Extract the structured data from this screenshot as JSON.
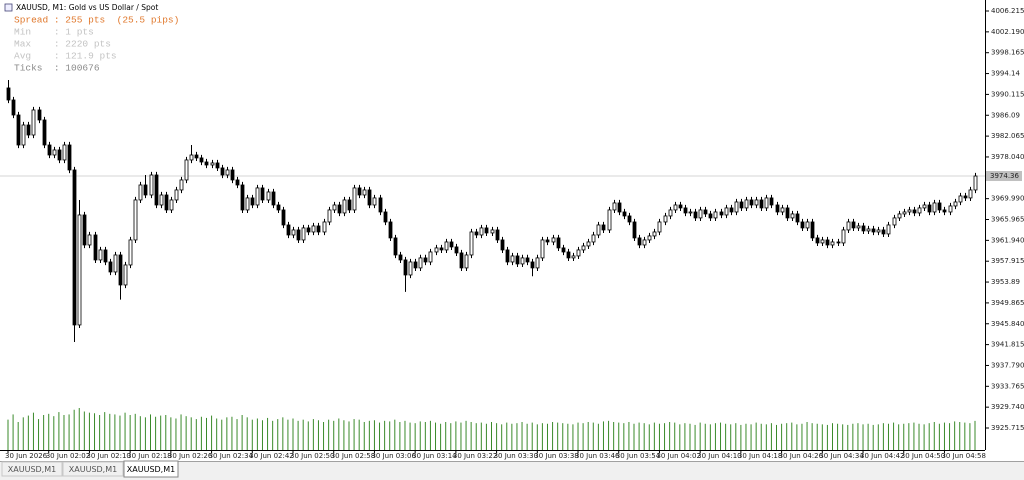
{
  "window": {
    "title": "XAUUSD, M1:  Gold vs US Dollar / Spot",
    "spread": "Spread : 255 pts  (25.5 pips)",
    "info": [
      "Min    : 1 pts",
      "Max    : 2220 pts",
      "Avg    : 121.9 pts"
    ],
    "ticks": "Ticks  : 100676",
    "tabs": [
      "XAUUSD,M1",
      "XAUUSD,M1",
      "XAUUSD,M1"
    ]
  },
  "chart_data": {
    "type": "candlestick",
    "ylim": [
      3921.47,
      4008.34
    ],
    "yticks": [
      4006.215,
      {
        "value": 4002.19,
        "label": "4002.190"
      },
      3998.165,
      3994.14,
      3990.115,
      3986.09,
      3982.065,
      {
        "value": 3978.04,
        "label": "3978.040"
      },
      {
        "value": 3969.99,
        "label": "3969.990"
      },
      3965.965,
      {
        "value": 3961.94,
        "label": "3961.940"
      },
      3957.915,
      3953.89,
      3949.865,
      {
        "value": 3945.84,
        "label": "3945.840"
      },
      3941.815,
      {
        "value": 3937.79,
        "label": "3937.790"
      },
      3933.765,
      {
        "value": 3929.74,
        "label": "3929.740"
      },
      3925.715
    ],
    "current_price": 3974.36,
    "up_color": "#ffffff",
    "down_color": "#000000",
    "volume_color": "#3a8a2a",
    "categories": [
      "30 Jun 2026",
      null,
      null,
      null,
      null,
      null,
      null,
      null,
      "30 Jun 02:02",
      null,
      null,
      null,
      null,
      null,
      null,
      null,
      "30 Jun 02:10",
      null,
      null,
      null,
      null,
      null,
      null,
      null,
      "30 Jun 02:18",
      null,
      null,
      null,
      null,
      null,
      null,
      null,
      "30 Jun 02:26",
      null,
      null,
      null,
      null,
      null,
      null,
      null,
      "30 Jun 02:34",
      null,
      null,
      null,
      null,
      null,
      null,
      null,
      "30 Jun 02:42",
      null,
      null,
      null,
      null,
      null,
      null,
      null,
      "30 Jun 02:50",
      null,
      null,
      null,
      null,
      null,
      null,
      null,
      "30 Jun 02:58",
      null,
      null,
      null,
      null,
      null,
      null,
      null,
      "30 Jun 03:06",
      null,
      null,
      null,
      null,
      null,
      null,
      null,
      "30 Jun 03:14",
      null,
      null,
      null,
      null,
      null,
      null,
      null,
      "30 Jun 03:22",
      null,
      null,
      null,
      null,
      null,
      null,
      null,
      "30 Jun 03:30",
      null,
      null,
      null,
      null,
      null,
      null,
      null,
      "30 Jun 03:38",
      null,
      null,
      null,
      null,
      null,
      null,
      null,
      "30 Jun 03:46",
      null,
      null,
      null,
      null,
      null,
      null,
      null,
      "30 Jun 03:54",
      null,
      null,
      null,
      null,
      null,
      null,
      null,
      "30 Jun 04:02",
      null,
      null,
      null,
      null,
      null,
      null,
      null,
      "30 Jun 04:10",
      null,
      null,
      null,
      null,
      null,
      null,
      null,
      "30 Jun 04:18",
      null,
      null,
      null,
      null,
      null,
      null,
      null,
      "30 Jun 04:26",
      null,
      null,
      null,
      null,
      null,
      null,
      null,
      "30 Jun 04:34",
      null,
      null,
      null,
      null,
      null,
      null,
      null,
      "30 Jun 04:42",
      null,
      null,
      null,
      null,
      null,
      null,
      null,
      "30 Jun 04:50",
      null,
      null,
      null,
      null,
      null,
      null,
      null,
      "30 Jun 04:58",
      null,
      null,
      null,
      null,
      null,
      null
    ],
    "open": [
      3991.36,
      3989.04,
      3986.14,
      3980.35,
      3984.21,
      3982.28,
      3987.11,
      3985.18,
      3980.35,
      3978.42,
      3979.39,
      3977.46,
      3980.35,
      3975.53,
      3945.61,
      3966.84,
      3961.05,
      3962.98,
      3958.16,
      3960.09,
      3957.77,
      3955.84,
      3959.12,
      3953.33,
      3957.19,
      3962.02,
      3969.74,
      3972.63,
      3970.7,
      3974.56,
      3968.77,
      3970.7,
      3967.81,
      3969.74,
      3971.67,
      3973.6,
      3977.46,
      3978.42,
      3977.85,
      3977.07,
      3976.49,
      3976.88,
      3975.92,
      3974.56,
      3975.53,
      3973.6,
      3972.63,
      3967.81,
      3970.13,
      3968.77,
      3972.06,
      3969.74,
      3971.28,
      3968.77,
      3967.81,
      3964.91,
      3962.98,
      3963.95,
      3962.02,
      3964.34,
      3963.56,
      3964.72,
      3963.56,
      3965.49,
      3967.81,
      3968.77,
      3967.23,
      3969.74,
      3967.81,
      3972.06,
      3970.7,
      3971.67,
      3968.77,
      3970.13,
      3967.42,
      3965.49,
      3962.41,
      3959.12,
      3958.16,
      3955.26,
      3957.77,
      3956.62,
      3958.55,
      3957.77,
      3959.7,
      3960.48,
      3960.09,
      3961.63,
      3960.67,
      3959.51,
      3956.62,
      3959.12,
      3963.56,
      3962.98,
      3964.34,
      3963.37,
      3963.95,
      3962.02,
      3960.09,
      3957.77,
      3958.93,
      3957.39,
      3958.55,
      3957.77,
      3956.62,
      3958.55,
      3962.02,
      3961.63,
      3962.41,
      3960.48,
      3959.7,
      3958.55,
      3958.93,
      3960.09,
      3960.86,
      3961.63,
      3962.98,
      3964.91,
      3963.95,
      3967.81,
      3969.16,
      3967.42,
      3966.65,
      3965.49,
      3962.41,
      3961.05,
      3962.02,
      3962.79,
      3963.56,
      3965.49,
      3966.65,
      3967.81,
      3968.77,
      3968.2,
      3967.23,
      3967.42,
      3966.27,
      3967.81,
      3967.04,
      3966.27,
      3967.42,
      3966.84,
      3968.2,
      3967.42,
      3969.35,
      3968.2,
      3969.74,
      3968.77,
      3969.74,
      3968.2,
      3970.13,
      3968.77,
      3967.42,
      3968.2,
      3966.27,
      3967.04,
      3965.49,
      3964.34,
      3965.49,
      3962.41,
      3961.44,
      3962.02,
      3961.05,
      3961.63,
      3961.44,
      3963.95,
      3965.49,
      3964.34,
      3964.72,
      3963.76,
      3964.14,
      3963.56,
      3963.95,
      3963.18,
      3964.91,
      3966.27,
      3967.04,
      3967.42,
      3967.81,
      3967.23,
      3968.2,
      3968.77,
      3967.42,
      3969.16,
      3967.81,
      3967.42,
      3968.58,
      3969.35,
      3970.51,
      3970.13,
      3971.67
    ],
    "high": [
      3992.9,
      3989.64,
      3986.74,
      3984.81,
      3984.81,
      3987.71,
      3987.71,
      3985.78,
      3980.95,
      3979.99,
      3979.99,
      3980.95,
      3980.95,
      3976.13,
      3969.74,
      3967.44,
      3963.58,
      3963.58,
      3960.69,
      3960.69,
      3958.37,
      3959.72,
      3959.72,
      3957.79,
      3962.62,
      3970.34,
      3973.23,
      3974.56,
      3975.16,
      3975.16,
      3971.3,
      3971.3,
      3970.34,
      3972.27,
      3974.2,
      3978.06,
      3980.35,
      3979.02,
      3978.45,
      3977.67,
      3977.48,
      3977.48,
      3976.52,
      3976.13,
      3976.13,
      3974.2,
      3973.23,
      3970.73,
      3970.73,
      3972.66,
      3972.66,
      3971.88,
      3971.88,
      3969.37,
      3968.41,
      3965.51,
      3964.55,
      3964.55,
      3964.94,
      3964.94,
      3965.32,
      3965.32,
      3966.09,
      3968.41,
      3969.37,
      3969.37,
      3970.34,
      3970.34,
      3972.66,
      3972.66,
      3972.27,
      3972.27,
      3970.73,
      3970.73,
      3968.02,
      3966.09,
      3963.01,
      3959.72,
      3958.76,
      3958.37,
      3958.37,
      3959.15,
      3959.15,
      3960.3,
      3961.08,
      3961.08,
      3962.23,
      3962.23,
      3961.27,
      3960.11,
      3959.72,
      3964.16,
      3964.16,
      3964.94,
      3964.94,
      3964.55,
      3964.55,
      3962.62,
      3960.69,
      3959.53,
      3959.53,
      3959.15,
      3959.15,
      3958.37,
      3959.15,
      3962.62,
      3962.62,
      3963.01,
      3963.01,
      3961.08,
      3960.3,
      3959.53,
      3960.69,
      3961.46,
      3962.23,
      3963.58,
      3965.51,
      3965.51,
      3968.41,
      3969.76,
      3969.76,
      3968.02,
      3967.25,
      3966.09,
      3963.01,
      3962.62,
      3963.39,
      3964.16,
      3966.09,
      3967.25,
      3968.41,
      3969.37,
      3969.37,
      3968.8,
      3968.02,
      3968.02,
      3968.41,
      3968.41,
      3967.64,
      3968.02,
      3968.02,
      3968.8,
      3968.8,
      3969.95,
      3969.95,
      3970.34,
      3970.34,
      3970.34,
      3970.34,
      3970.73,
      3970.73,
      3969.37,
      3968.8,
      3968.8,
      3967.64,
      3967.64,
      3966.09,
      3966.09,
      3966.09,
      3963.01,
      3962.62,
      3962.62,
      3962.23,
      3962.23,
      3964.55,
      3966.09,
      3966.09,
      3965.32,
      3965.32,
      3964.74,
      3964.74,
      3964.55,
      3964.55,
      3965.51,
      3966.87,
      3967.64,
      3968.02,
      3968.41,
      3968.41,
      3968.8,
      3969.37,
      3969.37,
      3969.76,
      3969.76,
      3968.41,
      3969.18,
      3969.95,
      3971.11,
      3971.11,
      3972.27,
      3974.96
    ],
    "low": [
      3988.44,
      3985.54,
      3979.75,
      3979.75,
      3981.68,
      3981.68,
      3984.58,
      3979.75,
      3977.82,
      3977.82,
      3976.86,
      3976.86,
      3974.93,
      3942.33,
      3945.01,
      3960.45,
      3960.45,
      3957.56,
      3957.56,
      3957.17,
      3955.24,
      3955.24,
      3950.5,
      3952.73,
      3956.59,
      3961.42,
      3969.14,
      3970.1,
      3970.1,
      3968.17,
      3968.17,
      3967.21,
      3967.21,
      3969.14,
      3971.07,
      3973.0,
      3976.86,
      3977.25,
      3976.47,
      3975.89,
      3975.89,
      3975.32,
      3973.96,
      3973.96,
      3973.0,
      3972.03,
      3967.21,
      3967.21,
      3968.17,
      3968.17,
      3969.14,
      3969.14,
      3968.17,
      3967.21,
      3964.31,
      3962.38,
      3962.38,
      3961.42,
      3961.42,
      3962.96,
      3962.96,
      3962.96,
      3962.96,
      3964.89,
      3967.21,
      3966.63,
      3966.63,
      3967.21,
      3967.21,
      3970.1,
      3970.1,
      3968.17,
      3968.17,
      3966.82,
      3964.89,
      3961.81,
      3958.52,
      3957.56,
      3952.0,
      3954.66,
      3956.02,
      3956.02,
      3957.17,
      3957.17,
      3959.1,
      3959.49,
      3959.49,
      3960.07,
      3958.91,
      3956.02,
      3956.02,
      3958.52,
      3962.38,
      3962.38,
      3962.77,
      3962.77,
      3961.42,
      3959.49,
      3957.17,
      3957.17,
      3956.79,
      3956.79,
      3957.17,
      3955.0,
      3956.02,
      3957.95,
      3961.03,
      3961.03,
      3959.88,
      3959.1,
      3957.95,
      3957.95,
      3958.33,
      3959.49,
      3960.26,
      3961.03,
      3962.38,
      3963.35,
      3963.35,
      3967.21,
      3966.82,
      3966.05,
      3964.89,
      3961.81,
      3960.45,
      3960.45,
      3961.42,
      3962.19,
      3962.96,
      3964.89,
      3966.05,
      3967.21,
      3967.6,
      3966.63,
      3966.63,
      3965.67,
      3965.67,
      3966.44,
      3965.67,
      3965.67,
      3966.24,
      3966.24,
      3966.82,
      3966.82,
      3967.6,
      3967.6,
      3968.17,
      3968.17,
      3967.6,
      3967.6,
      3968.17,
      3966.82,
      3966.82,
      3965.67,
      3965.67,
      3964.89,
      3963.74,
      3963.74,
      3961.81,
      3960.84,
      3960.84,
      3960.45,
      3960.45,
      3960.84,
      3960.84,
      3963.35,
      3963.74,
      3963.74,
      3963.16,
      3963.16,
      3962.96,
      3962.96,
      3962.58,
      3962.58,
      3964.31,
      3965.67,
      3966.44,
      3966.82,
      3966.63,
      3966.63,
      3967.6,
      3966.82,
      3966.82,
      3967.21,
      3966.82,
      3966.82,
      3967.98,
      3968.75,
      3969.53,
      3969.53,
      3971.07
    ],
    "close": [
      3989.04,
      3986.14,
      3980.35,
      3984.21,
      3982.28,
      3987.11,
      3985.18,
      3980.35,
      3978.42,
      3979.39,
      3977.46,
      3980.35,
      3975.53,
      3945.61,
      3966.84,
      3961.05,
      3962.98,
      3958.16,
      3960.09,
      3957.77,
      3955.84,
      3959.12,
      3953.33,
      3957.19,
      3962.02,
      3969.74,
      3972.63,
      3970.7,
      3974.56,
      3968.77,
      3970.7,
      3967.81,
      3969.74,
      3971.67,
      3973.6,
      3977.46,
      3978.42,
      3977.85,
      3977.07,
      3976.49,
      3976.88,
      3975.92,
      3974.56,
      3975.53,
      3973.6,
      3972.63,
      3967.81,
      3970.13,
      3968.77,
      3972.06,
      3969.74,
      3971.28,
      3968.77,
      3967.81,
      3964.91,
      3962.98,
      3963.95,
      3962.02,
      3964.34,
      3963.56,
      3964.72,
      3963.56,
      3965.49,
      3967.81,
      3968.77,
      3967.23,
      3969.74,
      3967.81,
      3972.06,
      3970.7,
      3971.67,
      3968.77,
      3970.13,
      3967.42,
      3965.49,
      3962.41,
      3959.12,
      3958.16,
      3955.26,
      3957.77,
      3956.62,
      3958.55,
      3957.77,
      3959.7,
      3960.48,
      3960.09,
      3961.63,
      3960.67,
      3959.51,
      3956.62,
      3959.12,
      3963.56,
      3962.98,
      3964.34,
      3963.37,
      3963.95,
      3962.02,
      3960.09,
      3957.77,
      3958.93,
      3957.39,
      3958.55,
      3957.77,
      3956.62,
      3958.55,
      3962.02,
      3961.63,
      3962.41,
      3960.48,
      3959.7,
      3958.55,
      3958.93,
      3960.09,
      3960.86,
      3961.63,
      3962.98,
      3964.91,
      3963.95,
      3967.81,
      3969.16,
      3967.42,
      3966.65,
      3965.49,
      3962.41,
      3961.05,
      3962.02,
      3962.79,
      3963.56,
      3965.49,
      3966.65,
      3967.81,
      3968.77,
      3968.2,
      3967.23,
      3967.42,
      3966.27,
      3967.81,
      3967.04,
      3966.27,
      3967.42,
      3966.84,
      3968.2,
      3967.42,
      3969.35,
      3968.2,
      3969.74,
      3968.77,
      3969.74,
      3968.2,
      3970.13,
      3968.77,
      3967.42,
      3968.2,
      3966.27,
      3967.04,
      3965.49,
      3964.34,
      3965.49,
      3962.41,
      3961.44,
      3962.02,
      3961.05,
      3961.63,
      3961.44,
      3963.95,
      3965.49,
      3964.34,
      3964.72,
      3963.76,
      3964.14,
      3963.56,
      3963.95,
      3963.18,
      3964.91,
      3966.27,
      3967.04,
      3967.42,
      3967.81,
      3967.23,
      3968.2,
      3968.77,
      3967.42,
      3969.16,
      3967.81,
      3967.42,
      3968.58,
      3969.35,
      3970.51,
      3970.13,
      3971.67,
      3974.36
    ],
    "volume": [
      520,
      610,
      480,
      560,
      590,
      640,
      530,
      600,
      620,
      580,
      650,
      600,
      610,
      690,
      720,
      660,
      640,
      630,
      600,
      650,
      620,
      610,
      590,
      640,
      600,
      620,
      580,
      560,
      610,
      570,
      590,
      600,
      560,
      540,
      610,
      580,
      560,
      530,
      570,
      550,
      590,
      540,
      520,
      560,
      570,
      530,
      600,
      560,
      520,
      540,
      510,
      550,
      500,
      530,
      560,
      520,
      540,
      500,
      520,
      490,
      530,
      510,
      480,
      520,
      500,
      540,
      510,
      490,
      530,
      520,
      480,
      500,
      510,
      470,
      500,
      490,
      520,
      480,
      500,
      470,
      460,
      490,
      480,
      500,
      470,
      450,
      480,
      460,
      490,
      470,
      500,
      480,
      460,
      470,
      450,
      480,
      460,
      440,
      470,
      450,
      460,
      480,
      450,
      470,
      440,
      460,
      450,
      480,
      470,
      460,
      450,
      440,
      470,
      460,
      480,
      470,
      450,
      490,
      500,
      480,
      470,
      460,
      480,
      450,
      470,
      460,
      440,
      470,
      450,
      460,
      480,
      470,
      440,
      460,
      450,
      430,
      470,
      450,
      440,
      460,
      470,
      450,
      440,
      460,
      430,
      450,
      440,
      470,
      450,
      440,
      460,
      430,
      450,
      460,
      470,
      440,
      450,
      480,
      460,
      450,
      440,
      430,
      460,
      450,
      440,
      430,
      450,
      460,
      440,
      450,
      430,
      440,
      460,
      450,
      470,
      440,
      450,
      460,
      470,
      450,
      440,
      460,
      480,
      450,
      470,
      460,
      490,
      480,
      470,
      460,
      500
    ]
  }
}
